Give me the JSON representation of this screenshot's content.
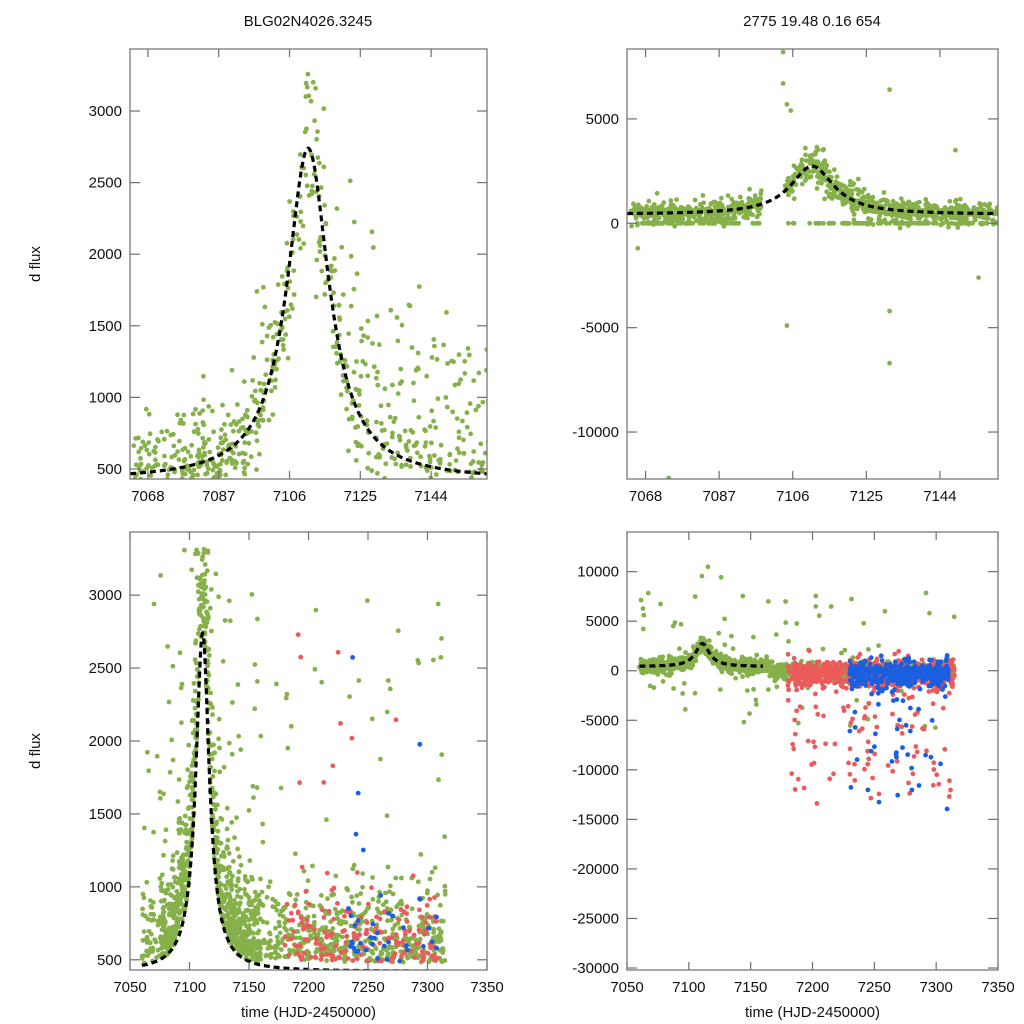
{
  "figure": {
    "title_left": "BLG02N4026.3245",
    "title_right": "2775  19.48  0.16  654"
  },
  "colors": {
    "series_green": "#86b04a",
    "series_red": "#ec5b5b",
    "series_blue": "#1a5fe0",
    "model": "#000000",
    "frame": "#6e6e6e"
  },
  "chart_data": [
    {
      "id": "top-left",
      "type": "scatter",
      "title": "BLG02N4026.3245",
      "xlabel": "",
      "ylabel": "d flux",
      "xlim": [
        7063.2,
        7159.0
      ],
      "ylim": [
        430,
        3433
      ],
      "xticks": [
        7068,
        7087,
        7106,
        7125,
        7144
      ],
      "yticks": [
        500,
        1000,
        1500,
        2000,
        2500,
        3000
      ],
      "model": {
        "type": "microlensing-peak",
        "t0": 7111,
        "peak": 2740,
        "base": 420,
        "width": 7.5
      },
      "series": [
        {
          "name": "green",
          "color": "#86b04a",
          "npoints": 700,
          "spread": 350
        }
      ]
    },
    {
      "id": "top-right",
      "type": "scatter",
      "title": "2775  19.48  0.16  654",
      "xlabel": "",
      "ylabel": "",
      "xlim": [
        7063.2,
        7159.0
      ],
      "ylim": [
        -12250,
        8350
      ],
      "xticks": [
        7068,
        7087,
        7106,
        7125,
        7144
      ],
      "yticks": [
        -10000,
        -5000,
        0,
        5000
      ],
      "model": {
        "type": "microlensing-peak",
        "t0": 7111,
        "peak": 2740,
        "base": 420,
        "width": 7.5
      },
      "series": [
        {
          "name": "green",
          "color": "#86b04a",
          "npoints": 1200,
          "spread": 450
        }
      ],
      "outliers": [
        [
          7103.5,
          8200
        ],
        [
          7103.5,
          6700
        ],
        [
          7104.5,
          5700
        ],
        [
          7105.5,
          5400
        ],
        [
          7131,
          6400
        ],
        [
          7148,
          3500
        ],
        [
          7104.5,
          -4900
        ],
        [
          7131,
          -4200
        ],
        [
          7131,
          -6700
        ],
        [
          7074,
          -12200
        ],
        [
          7066,
          -1200
        ],
        [
          7154,
          -2600
        ]
      ]
    },
    {
      "id": "bottom-left",
      "type": "scatter",
      "title": "",
      "xlabel": "time (HJD-2450000)",
      "ylabel": "d flux",
      "xlim": [
        7050,
        7350
      ],
      "ylim": [
        430,
        3433
      ],
      "xticks": [
        7050,
        7100,
        7150,
        7200,
        7250,
        7300,
        7350
      ],
      "yticks": [
        500,
        1000,
        1500,
        2000,
        2500,
        3000
      ],
      "model": {
        "type": "microlensing-peak",
        "t0": 7111,
        "peak": 2740,
        "base": 420,
        "width": 7.5
      },
      "series": [
        {
          "name": "green",
          "color": "#86b04a",
          "npoints": 1500,
          "x_range": [
            7060,
            7315
          ]
        },
        {
          "name": "red",
          "color": "#ec5b5b",
          "npoints": 180,
          "x_range": [
            7180,
            7310
          ]
        },
        {
          "name": "blue",
          "color": "#1a5fe0",
          "npoints": 40,
          "x_range": [
            7230,
            7310
          ]
        }
      ]
    },
    {
      "id": "bottom-right",
      "type": "scatter",
      "title": "",
      "xlabel": "time (HJD-2450000)",
      "ylabel": "",
      "xlim": [
        7050,
        7350
      ],
      "ylim": [
        -30200,
        14000
      ],
      "xticks": [
        7050,
        7100,
        7150,
        7200,
        7250,
        7300,
        7350
      ],
      "yticks": [
        -30000,
        -25000,
        -20000,
        -15000,
        -10000,
        -5000,
        0,
        5000,
        10000
      ],
      "model": {
        "type": "microlensing-peak",
        "t0": 7111,
        "peak": 2740,
        "base": 420,
        "width": 7.5,
        "x_end": 7160
      },
      "series": [
        {
          "name": "green",
          "color": "#86b04a",
          "npoints": 2200,
          "x_range": [
            7060,
            7315
          ]
        },
        {
          "name": "red",
          "color": "#ec5b5b",
          "npoints": 700,
          "x_range": [
            7180,
            7315
          ]
        },
        {
          "name": "blue",
          "color": "#1a5fe0",
          "npoints": 400,
          "x_range": [
            7230,
            7310
          ]
        }
      ]
    }
  ]
}
